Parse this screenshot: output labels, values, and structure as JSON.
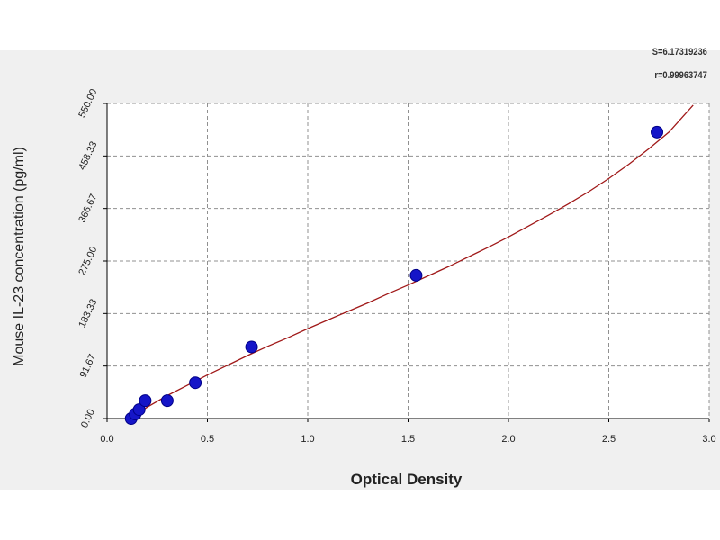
{
  "stats": {
    "s": "S=6.17319236",
    "r": "r=0.99963747"
  },
  "chart_data": {
    "type": "scatter",
    "title": "",
    "xlabel": "Optical Density",
    "ylabel": "Mouse IL-23 concentration (pg/ml)",
    "xlim": [
      0,
      3
    ],
    "ylim": [
      0,
      550
    ],
    "grid": true,
    "x_ticks": [
      "0.0",
      "0.5",
      "1.0",
      "1.5",
      "2.0",
      "2.5",
      "3.0"
    ],
    "x_tick_values": [
      0,
      0.5,
      1.0,
      1.5,
      2.0,
      2.5,
      3.0
    ],
    "y_ticks": [
      "0.00",
      "91.67",
      "183.33",
      "275.00",
      "366.67",
      "458.33",
      "550.00"
    ],
    "y_tick_values": [
      0,
      91.67,
      183.33,
      275.0,
      366.67,
      458.33,
      550.0
    ],
    "points": {
      "x": [
        0.12,
        0.14,
        0.16,
        0.19,
        0.3,
        0.44,
        0.72,
        1.54,
        2.74
      ],
      "y": [
        0,
        7.8,
        15.6,
        31.25,
        31.25,
        62.5,
        125,
        250,
        500
      ]
    },
    "fit_curve": {
      "x": [
        0.1,
        0.2,
        0.3,
        0.4,
        0.5,
        0.6,
        0.7,
        0.8,
        0.9,
        1.0,
        1.1,
        1.2,
        1.3,
        1.4,
        1.5,
        1.6,
        1.7,
        1.8,
        1.9,
        2.0,
        2.1,
        2.2,
        2.3,
        2.4,
        2.5,
        2.6,
        2.7,
        2.8,
        2.92
      ],
      "y": [
        -4,
        20,
        40,
        58,
        76,
        93,
        110,
        126,
        141,
        157,
        172,
        187,
        202,
        218,
        233,
        249,
        265,
        282,
        299,
        317,
        336,
        355,
        375,
        396,
        419,
        444,
        471,
        500,
        547
      ]
    },
    "colors": {
      "background": "#f0f0f0",
      "plot_area": "#ffffff",
      "grid": "#909090",
      "curve": "#a01818",
      "point_fill": "#1515c8",
      "point_stroke": "#000088",
      "axis": "#000000"
    }
  }
}
